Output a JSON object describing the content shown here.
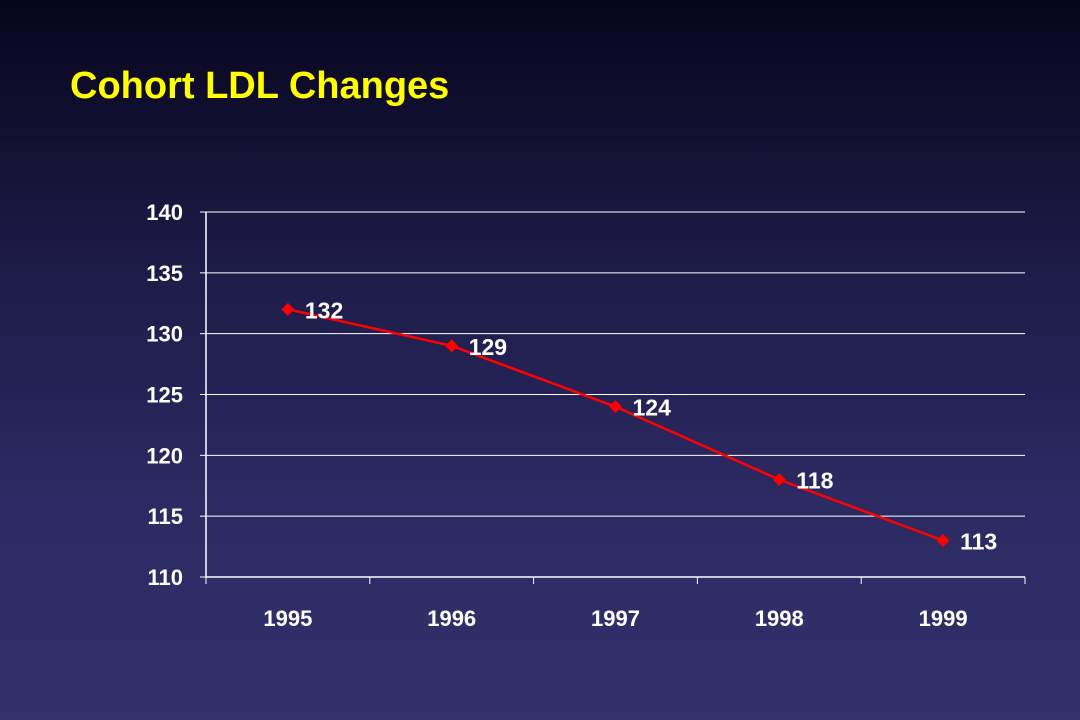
{
  "slide": {
    "title": "Cohort LDL Changes"
  },
  "colors": {
    "title": "#ffff00",
    "series_line": "#ff0000",
    "axis_and_grid": "#ffffff",
    "text": "#ffffff"
  },
  "chart_data": {
    "type": "line",
    "title": "",
    "xlabel": "",
    "ylabel": "",
    "categories": [
      "1995",
      "1996",
      "1997",
      "1998",
      "1999"
    ],
    "series": [
      {
        "values": [
          132,
          129,
          124,
          118,
          113
        ],
        "marker": "diamond",
        "data_labels": [
          "132",
          "129",
          "124",
          "118",
          "113"
        ]
      }
    ],
    "ylim": [
      110,
      140
    ],
    "yticks": [
      110,
      115,
      120,
      125,
      130,
      135,
      140
    ],
    "ytick_labels": [
      "110",
      "115",
      "120",
      "125",
      "130",
      "135",
      "140"
    ],
    "grid": "horizontal",
    "legend": "none"
  }
}
